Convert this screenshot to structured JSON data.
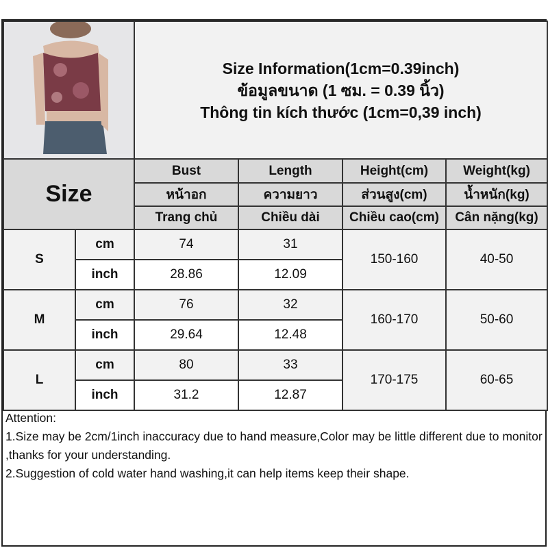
{
  "title": {
    "line1": "Size Information(1cm=0.39inch)",
    "line2": "ข้อมูลขนาด (1 ซม. = 0.39 นิ้ว)",
    "line3": "Thông tin kích thước (1cm=0,39 inch)"
  },
  "size_header": "Size",
  "columns": [
    {
      "en": "Bust",
      "th": "หน้าอก",
      "vi": "Trang chủ"
    },
    {
      "en": "Length",
      "th": "ความยาว",
      "vi": "Chiều dài"
    },
    {
      "en": "Height(cm)",
      "th": "ส่วนสูง(cm)",
      "vi": "Chiều cao(cm)"
    },
    {
      "en": "Weight(kg)",
      "th": "น้ำหนัก(kg)",
      "vi": "Cân nặng(kg)"
    }
  ],
  "rows": [
    {
      "size": "S",
      "cm_label": "cm",
      "inch_label": "inch",
      "bust_cm": "74",
      "length_cm": "31",
      "bust_inch": "28.86",
      "length_inch": "12.09",
      "height": "150-160",
      "weight": "40-50"
    },
    {
      "size": "M",
      "cm_label": "cm",
      "inch_label": "inch",
      "bust_cm": "76",
      "length_cm": "32",
      "bust_inch": "29.64",
      "length_inch": "12.48",
      "height": "160-170",
      "weight": "50-60"
    },
    {
      "size": "L",
      "cm_label": "cm",
      "inch_label": "inch",
      "bust_cm": "80",
      "length_cm": "33",
      "bust_inch": "31.2",
      "length_inch": "12.87",
      "height": "170-175",
      "weight": "60-65"
    }
  ],
  "attention": {
    "heading": "Attention:",
    "line1": "1.Size may be 2cm/1inch inaccuracy due to hand measure,Color may be little different due to monitor ,thanks for your understanding.",
    "line2": "2.Suggestion of cold water hand washing,it can help items keep their shape."
  },
  "colors": {
    "header_bg": "#d9d9d9",
    "cell_gray": "#f2f2f2",
    "border": "#333333"
  }
}
